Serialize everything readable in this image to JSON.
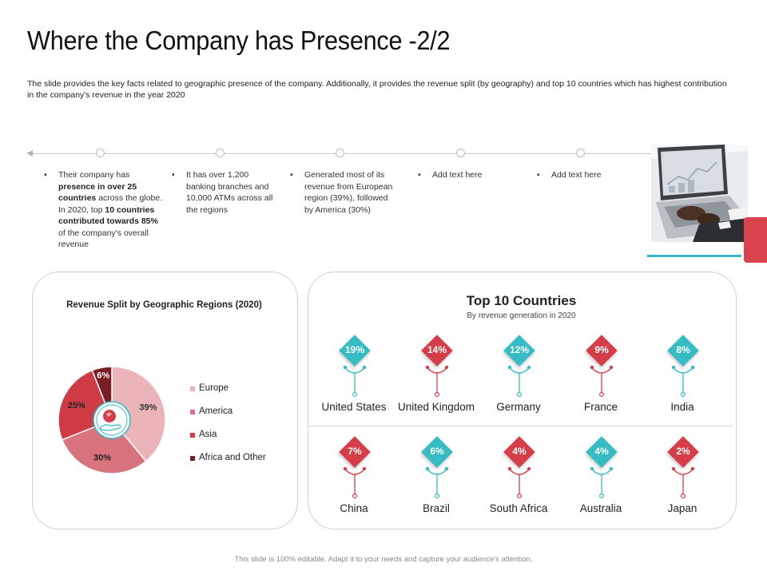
{
  "title": "Where the Company has Presence -2/2",
  "subtitle": "The slide provides the key facts related to geographic presence of the company. Additionally, it provides the revenue split (by geography) and top 10 countries which has highest contribution in the company's revenue in the year 2020",
  "facts": {
    "f1": {
      "p1": "Their company has ",
      "b1": "presence in over 25 countries",
      "p2": " across the globe. In 2020, top ",
      "b2": "10 countries contributed towards 85%",
      "p3": " of the company's overall revenue"
    },
    "f2": "It has over 1,200 banking branches and 10,000 ATMs across all the regions",
    "f3": "Generated most of its revenue from European region (39%), followed by America (30%)",
    "f4": "Add text here",
    "f5": "Add text here",
    "bullet": "•"
  },
  "chart_data": {
    "type": "pie",
    "title": "Revenue Split by Geographic Regions (2020)",
    "categories": [
      "Europe",
      "America",
      "Asia",
      "Africa and Other"
    ],
    "values": [
      39,
      30,
      25,
      6
    ],
    "labels": [
      "39%",
      "30%",
      "25%",
      "6%"
    ],
    "colors": [
      "#eab4b8",
      "#d9737d",
      "#cf3c45",
      "#7a1c24"
    ],
    "legend_position": "right"
  },
  "top_countries": {
    "title": "Top 10 Countries",
    "subtitle": "By revenue generation in 2020",
    "colors": {
      "teal": "#35bcc4",
      "red": "#d53e49"
    },
    "countries": [
      {
        "name": "United States",
        "value": "19%",
        "color": "teal"
      },
      {
        "name": "United Kingdom",
        "value": "14%",
        "color": "red"
      },
      {
        "name": "Germany",
        "value": "12%",
        "color": "teal"
      },
      {
        "name": "France",
        "value": "9%",
        "color": "red"
      },
      {
        "name": "India",
        "value": "8%",
        "color": "teal"
      },
      {
        "name": "China",
        "value": "7%",
        "color": "red"
      },
      {
        "name": "Brazil",
        "value": "6%",
        "color": "teal"
      },
      {
        "name": "South Africa",
        "value": "4%",
        "color": "red"
      },
      {
        "name": "Australia",
        "value": "4%",
        "color": "teal"
      },
      {
        "name": "Japan",
        "value": "2%",
        "color": "red"
      }
    ]
  },
  "photo_icon": "laptop-photo",
  "footer": "This slide is 100% editable. Adapt it to your needs and capture your audience's attention."
}
